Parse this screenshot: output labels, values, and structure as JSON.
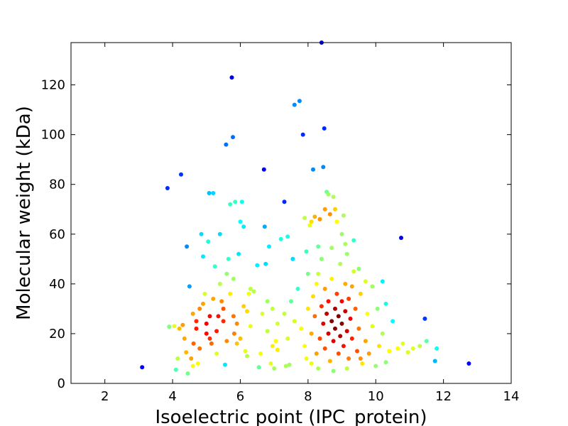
{
  "chart_data": {
    "type": "scatter",
    "title": "",
    "xlabel": "Isoelectric point (IPC_protein)",
    "ylabel": "Molecular weight (kDa)",
    "xlim": [
      1,
      14
    ],
    "ylim": [
      0,
      137
    ],
    "xticks": [
      "2",
      "4",
      "6",
      "8",
      "10",
      "12",
      "14"
    ],
    "yticks": [
      "0",
      "20",
      "40",
      "60",
      "80",
      "100",
      "120"
    ],
    "grid": false,
    "legend": "none",
    "color_scale": "jet (point density)",
    "colors": {
      "low_density": "#0000b0",
      "high_density": "#800000"
    },
    "points": [
      [
        3.1,
        6.5
      ],
      [
        3.85,
        78.5
      ],
      [
        3.9,
        22.8
      ],
      [
        4.05,
        23
      ],
      [
        4.1,
        5.5
      ],
      [
        4.15,
        10
      ],
      [
        4.2,
        22
      ],
      [
        4.25,
        84
      ],
      [
        4.3,
        23.5
      ],
      [
        4.35,
        18
      ],
      [
        4.4,
        12.5
      ],
      [
        4.42,
        55
      ],
      [
        4.45,
        4
      ],
      [
        4.5,
        39
      ],
      [
        4.55,
        10
      ],
      [
        4.6,
        7
      ],
      [
        4.62,
        16
      ],
      [
        4.7,
        25
      ],
      [
        4.75,
        8
      ],
      [
        4.8,
        30
      ],
      [
        4.85,
        60
      ],
      [
        4.9,
        51
      ],
      [
        4.95,
        36
      ],
      [
        5.0,
        24
      ],
      [
        5.05,
        57
      ],
      [
        5.08,
        76.5
      ],
      [
        5.1,
        18
      ],
      [
        5.15,
        16
      ],
      [
        5.2,
        76.5
      ],
      [
        5.25,
        47
      ],
      [
        5.3,
        12
      ],
      [
        5.35,
        27
      ],
      [
        5.4,
        60
      ],
      [
        5.45,
        33
      ],
      [
        5.5,
        25
      ],
      [
        5.55,
        7.5
      ],
      [
        5.58,
        96
      ],
      [
        5.6,
        44
      ],
      [
        5.65,
        50
      ],
      [
        5.7,
        72
      ],
      [
        5.75,
        123
      ],
      [
        5.78,
        99
      ],
      [
        5.8,
        27
      ],
      [
        5.82,
        20
      ],
      [
        5.85,
        73
      ],
      [
        5.9,
        16
      ],
      [
        5.95,
        52
      ],
      [
        6.0,
        65
      ],
      [
        6.05,
        73
      ],
      [
        6.1,
        63
      ],
      [
        6.15,
        13
      ],
      [
        6.2,
        29
      ],
      [
        6.25,
        36
      ],
      [
        6.3,
        23
      ],
      [
        6.4,
        37
      ],
      [
        6.5,
        47.5
      ],
      [
        6.55,
        6.5
      ],
      [
        6.6,
        12
      ],
      [
        6.65,
        28
      ],
      [
        6.7,
        86
      ],
      [
        6.72,
        63
      ],
      [
        6.75,
        48
      ],
      [
        6.8,
        21
      ],
      [
        6.85,
        55
      ],
      [
        6.9,
        8
      ],
      [
        6.95,
        30
      ],
      [
        7.0,
        6
      ],
      [
        7.05,
        17
      ],
      [
        7.1,
        13.5
      ],
      [
        7.2,
        58
      ],
      [
        7.3,
        73
      ],
      [
        7.35,
        7
      ],
      [
        7.4,
        59
      ],
      [
        7.45,
        7.5
      ],
      [
        7.55,
        50
      ],
      [
        7.6,
        112
      ],
      [
        7.75,
        113.5
      ],
      [
        7.85,
        100
      ],
      [
        7.9,
        66.5
      ],
      [
        7.95,
        53
      ],
      [
        8.0,
        44
      ],
      [
        8.05,
        63.5
      ],
      [
        8.1,
        65
      ],
      [
        8.15,
        86
      ],
      [
        8.2,
        67
      ],
      [
        8.25,
        40
      ],
      [
        8.3,
        55
      ],
      [
        8.35,
        66
      ],
      [
        8.4,
        137
      ],
      [
        8.45,
        87
      ],
      [
        8.48,
        102.5
      ],
      [
        8.5,
        70
      ],
      [
        8.55,
        77
      ],
      [
        8.6,
        76
      ],
      [
        8.65,
        68
      ],
      [
        8.7,
        54.5
      ],
      [
        8.75,
        75
      ],
      [
        8.8,
        70
      ],
      [
        8.85,
        65
      ],
      [
        9.0,
        60
      ],
      [
        9.05,
        67.5
      ],
      [
        9.1,
        56
      ],
      [
        9.15,
        52
      ],
      [
        9.35,
        57.5
      ],
      [
        9.5,
        46
      ],
      [
        9.7,
        41
      ],
      [
        9.9,
        39
      ],
      [
        10.05,
        30
      ],
      [
        10.2,
        41
      ],
      [
        10.3,
        8.5
      ],
      [
        10.4,
        13
      ],
      [
        10.5,
        25
      ],
      [
        10.65,
        14
      ],
      [
        10.75,
        58.5
      ],
      [
        10.8,
        16
      ],
      [
        10.95,
        12.5
      ],
      [
        11.1,
        14
      ],
      [
        11.3,
        15
      ],
      [
        11.45,
        26
      ],
      [
        11.5,
        17
      ],
      [
        11.75,
        9
      ],
      [
        11.8,
        14
      ],
      [
        12.75,
        8
      ],
      [
        4.6,
        28
      ],
      [
        4.7,
        22
      ],
      [
        4.8,
        14
      ],
      [
        4.9,
        32
      ],
      [
        5.0,
        20
      ],
      [
        5.1,
        27
      ],
      [
        5.2,
        34
      ],
      [
        5.3,
        21
      ],
      [
        5.4,
        40
      ],
      [
        5.5,
        30
      ],
      [
        5.6,
        17
      ],
      [
        5.7,
        36
      ],
      [
        5.8,
        42
      ],
      [
        5.9,
        24
      ],
      [
        6.0,
        18
      ],
      [
        6.1,
        31
      ],
      [
        6.2,
        11
      ],
      [
        6.3,
        38
      ],
      [
        6.8,
        33
      ],
      [
        6.95,
        15
      ],
      [
        7.1,
        24
      ],
      [
        7.3,
        28
      ],
      [
        7.4,
        18
      ],
      [
        7.5,
        33
      ],
      [
        7.6,
        25
      ],
      [
        7.7,
        38
      ],
      [
        7.8,
        22
      ],
      [
        7.9,
        15
      ],
      [
        8.0,
        30
      ],
      [
        8.1,
        8
      ],
      [
        8.1,
        20
      ],
      [
        8.15,
        35
      ],
      [
        8.2,
        27
      ],
      [
        8.25,
        12
      ],
      [
        8.3,
        44
      ],
      [
        8.35,
        18
      ],
      [
        8.4,
        31
      ],
      [
        8.45,
        24
      ],
      [
        8.5,
        38
      ],
      [
        8.5,
        14
      ],
      [
        8.55,
        28
      ],
      [
        8.6,
        20
      ],
      [
        8.6,
        33
      ],
      [
        8.65,
        9
      ],
      [
        8.7,
        25
      ],
      [
        8.7,
        42
      ],
      [
        8.75,
        17
      ],
      [
        8.8,
        30
      ],
      [
        8.8,
        22
      ],
      [
        8.85,
        36
      ],
      [
        8.9,
        12
      ],
      [
        8.9,
        27
      ],
      [
        8.95,
        19
      ],
      [
        9.0,
        33
      ],
      [
        9.0,
        24
      ],
      [
        9.05,
        15
      ],
      [
        9.1,
        29
      ],
      [
        9.1,
        40
      ],
      [
        9.15,
        21
      ],
      [
        9.2,
        10
      ],
      [
        9.2,
        34
      ],
      [
        9.25,
        26
      ],
      [
        9.3,
        18
      ],
      [
        9.35,
        45
      ],
      [
        9.4,
        30
      ],
      [
        9.45,
        13
      ],
      [
        9.5,
        22
      ],
      [
        9.55,
        36
      ],
      [
        9.6,
        8
      ],
      [
        9.7,
        17
      ],
      [
        9.75,
        28
      ],
      [
        9.8,
        12
      ],
      [
        9.9,
        23
      ],
      [
        10.0,
        7
      ],
      [
        10.1,
        15
      ],
      [
        10.2,
        20
      ],
      [
        10.3,
        32
      ],
      [
        8.4,
        50
      ],
      [
        8.95,
        48
      ],
      [
        9.3,
        39
      ],
      [
        8.75,
        5
      ],
      [
        9.15,
        6
      ],
      [
        8.3,
        6
      ],
      [
        9.55,
        10
      ],
      [
        7.95,
        10
      ]
    ]
  }
}
